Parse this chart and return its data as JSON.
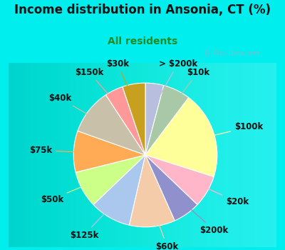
{
  "title": "Income distribution in Ansonia, CT (%)",
  "subtitle": "All residents",
  "bg_color": "#00EEEE",
  "chart_bg": "#e0f5ee",
  "watermark": "City-Data.com",
  "slices": [
    {
      "label": "> $200k",
      "value": 4,
      "color": "#b8bedd"
    },
    {
      "label": "$10k",
      "value": 6,
      "color": "#a8c8a8"
    },
    {
      "label": "$100k",
      "value": 19,
      "color": "#ffff99"
    },
    {
      "label": "$20k",
      "value": 7,
      "color": "#ffb6c8"
    },
    {
      "label": "$200k",
      "value": 6,
      "color": "#9090cc"
    },
    {
      "label": "$60k",
      "value": 10,
      "color": "#f5ccaa"
    },
    {
      "label": "$125k",
      "value": 9,
      "color": "#aac8ee"
    },
    {
      "label": "$50k",
      "value": 8,
      "color": "#ccff88"
    },
    {
      "label": "$75k",
      "value": 9,
      "color": "#ffaa55"
    },
    {
      "label": "$40k",
      "value": 10,
      "color": "#c8c0a8"
    },
    {
      "label": "$150k",
      "value": 4,
      "color": "#ff9999"
    },
    {
      "label": "$30k",
      "value": 5,
      "color": "#c8a020"
    }
  ],
  "label_fontsize": 8.5,
  "title_fontsize": 12,
  "subtitle_fontsize": 10,
  "subtitle_color": "#228B22"
}
